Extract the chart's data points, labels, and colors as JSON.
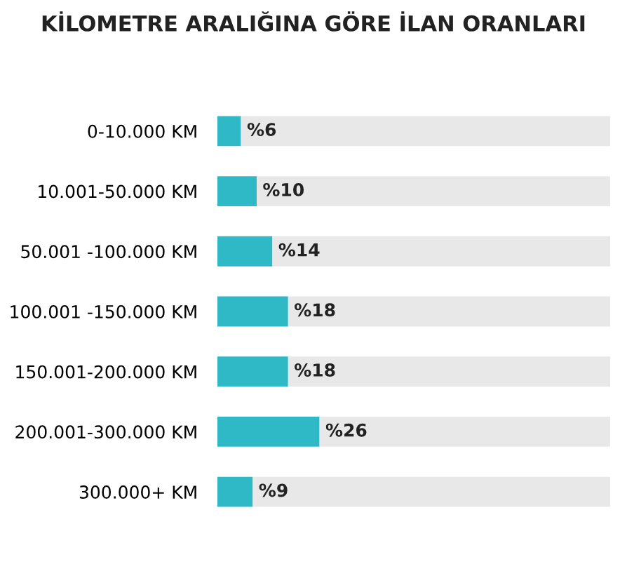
{
  "chart_data": {
    "type": "bar",
    "orientation": "horizontal",
    "stacked": true,
    "title": "KİLOMETRE ARALIĞINA GÖRE İLAN ORANLARI",
    "categories": [
      "0-10.000 KM",
      "10.001-50.000 KM",
      "50.001 -100.000 KM",
      "100.001 -150.000 KM",
      "150.001-200.000 KM",
      "200.001-300.000 KM",
      "300.000+ KM"
    ],
    "series": [
      {
        "color": "#2fb8c6",
        "values": [
          6,
          10,
          14,
          18,
          18,
          26,
          9
        ],
        "value_labels": [
          "%6",
          "%10",
          "%14",
          "%18",
          "%18",
          "%26",
          "%9"
        ]
      },
      {
        "color": "#e8e8e8",
        "values": [
          94,
          90,
          86,
          82,
          82,
          74,
          91
        ]
      }
    ],
    "xlim": [
      0,
      100
    ],
    "tick_labels": "y",
    "grid": false,
    "legend": false
  }
}
